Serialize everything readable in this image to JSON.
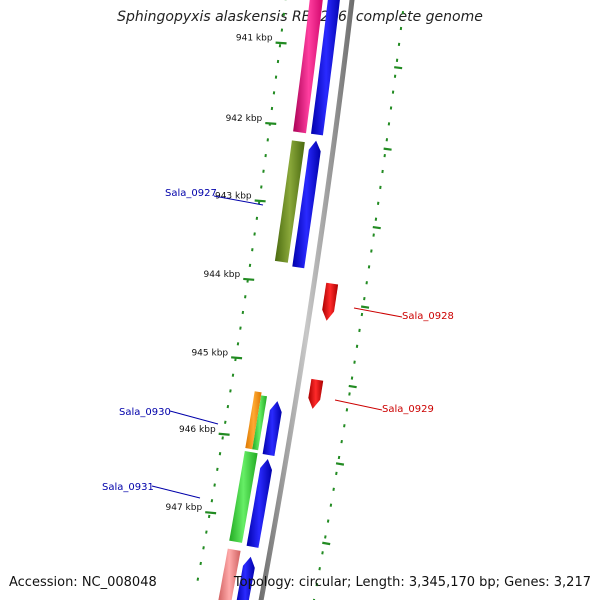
{
  "title": "Sphingopyxis alaskensis RB2256, complete genome",
  "accession": "Accession: NC_008048",
  "topology": "Topology: circular; Length: 3,345,170 bp; Genes: 3,217",
  "colors": {
    "backbone": "#8a8a8a",
    "tick": "#228B22",
    "blue_gene": "#0000EE",
    "red_gene": "#EE0000",
    "forward_label": "#0000AA",
    "reverse_label": "#CC0000",
    "pink_gene": "#EE1188",
    "olive_gene": "#6B8E23",
    "green_gene": "#33CC33",
    "orange_gene": "#FF8C00",
    "salmon_gene": "#F08080"
  },
  "kbp_ticks": [
    {
      "label": "941 kbp"
    },
    {
      "label": "942 kbp"
    },
    {
      "label": "943 kbp"
    },
    {
      "label": "944 kbp"
    },
    {
      "label": "945 kbp"
    },
    {
      "label": "946 kbp"
    },
    {
      "label": "947 kbp"
    }
  ],
  "gene_labels": [
    {
      "name": "Sala_0927",
      "strand": "forward"
    },
    {
      "name": "Sala_0928",
      "strand": "reverse"
    },
    {
      "name": "Sala_0929",
      "strand": "reverse"
    },
    {
      "name": "Sala_0930",
      "strand": "forward"
    },
    {
      "name": "Sala_0931",
      "strand": "forward"
    }
  ]
}
